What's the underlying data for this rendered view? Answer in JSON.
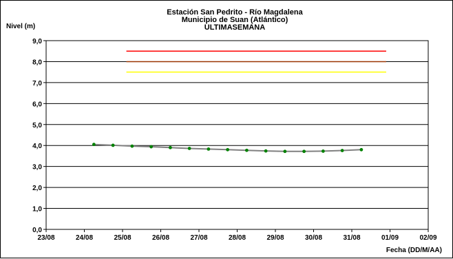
{
  "chart_data": {
    "type": "line",
    "title": [
      "Estación San Pedrito - Río Magdalena",
      "Municipio de Suan (Atlántico)",
      "ULTIMASEMANA"
    ],
    "ylabel": "Nivel (m)",
    "xlabel": "Fecha (DD/M/AA)",
    "x_ticks": [
      "23/08",
      "24/08",
      "25/08",
      "26/08",
      "27/08",
      "28/08",
      "29/08",
      "30/08",
      "31/08",
      "01/09",
      "02/09"
    ],
    "y_ticks": [
      "0,0",
      "1,0",
      "2,0",
      "3,0",
      "4,0",
      "5,0",
      "6,0",
      "7,0",
      "8,0",
      "9,0"
    ],
    "ylim": [
      0,
      9
    ],
    "xlim_days": [
      0,
      10
    ],
    "grid": "horizontal",
    "series": [
      {
        "color": "#808080",
        "marker_color": "#008000",
        "x": [
          1.25,
          1.75,
          2.25,
          2.75,
          3.25,
          3.75,
          4.25,
          4.75,
          5.25,
          5.75,
          6.25,
          6.75,
          7.25,
          7.75,
          8.25
        ],
        "y": [
          4.05,
          4.01,
          3.97,
          3.94,
          3.9,
          3.86,
          3.83,
          3.8,
          3.77,
          3.74,
          3.72,
          3.72,
          3.73,
          3.76,
          3.8
        ]
      }
    ],
    "threshold_lines": [
      {
        "color": "#ff0000",
        "y": 8.5,
        "x_start": 2.1,
        "x_end": 8.9
      },
      {
        "color": "#993300",
        "y": 8.0,
        "x_start": 2.1,
        "x_end": 8.9
      },
      {
        "color": "#ffff00",
        "y": 7.5,
        "x_start": 2.1,
        "x_end": 8.9
      }
    ]
  }
}
